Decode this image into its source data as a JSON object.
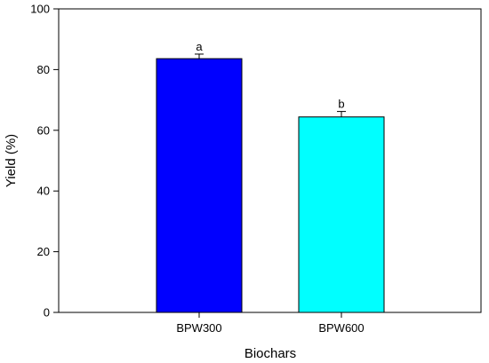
{
  "chart_data": {
    "type": "bar",
    "categories": [
      "BPW300",
      "BPW600"
    ],
    "values": [
      83.6,
      64.4
    ],
    "errors": [
      1.5,
      1.8
    ],
    "significance_labels": [
      "a",
      "b"
    ],
    "colors": [
      "#0000ff",
      "#00ffff"
    ],
    "xlabel": "Biochars",
    "ylabel": "Yield (%)",
    "ylim": [
      0,
      100
    ],
    "yticks": [
      0,
      20,
      40,
      60,
      80,
      100
    ],
    "grid": false
  }
}
